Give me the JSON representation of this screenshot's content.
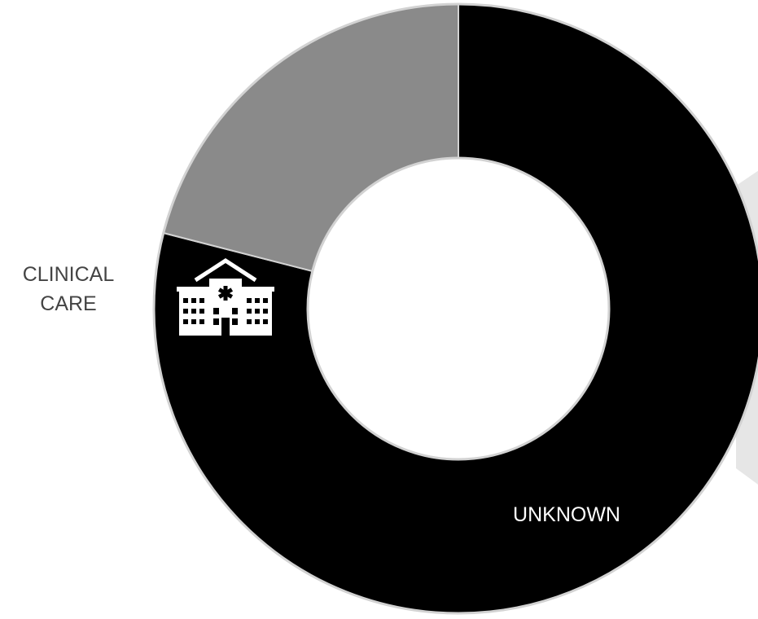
{
  "chart_data": {
    "type": "pie",
    "donut": true,
    "slices": [
      {
        "label": "UNKNOWN",
        "value": 79,
        "color": "#000000",
        "label_color": "#ffffff"
      },
      {
        "label": "",
        "value": 21,
        "color": "#8a8a8a"
      }
    ],
    "annotation": {
      "lines": [
        "CLINICAL",
        "CARE"
      ],
      "icon": "hospital-icon",
      "color": "#444444"
    },
    "background_shape_color": "#e6e6e6",
    "border_color": "#d2d2d2",
    "background": "#ffffff"
  }
}
